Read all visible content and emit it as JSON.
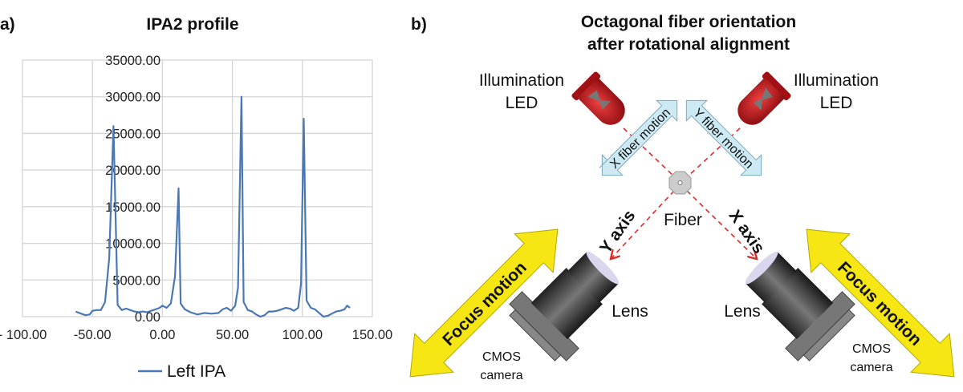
{
  "panel_a": {
    "label": "a)",
    "chart_data": {
      "type": "line",
      "title": "IPA2 profile",
      "xlabel": "",
      "ylabel": "",
      "xlim": [
        -100,
        150
      ],
      "ylim": [
        0,
        35000
      ],
      "x_ticks": [
        "- 100.00",
        "-50.00",
        "0.00",
        "50.00",
        "100.00",
        "150.00"
      ],
      "y_ticks": [
        "0.00",
        "5000.00",
        "10000.00",
        "15000.00",
        "20000.00",
        "25000.00",
        "30000.00",
        "35000.00"
      ],
      "grid": true,
      "legend_position": "bottom",
      "series": [
        {
          "name": "Left IPA",
          "color": "#4a78b5",
          "x": [
            -62,
            -58,
            -55,
            -52,
            -50,
            -47,
            -44,
            -41,
            -38,
            -35,
            -32,
            -29,
            -26,
            -23,
            -20,
            -17,
            -14,
            -11,
            -8,
            -5,
            -2,
            0,
            3,
            6,
            9,
            11.5,
            13,
            16,
            20,
            25,
            30,
            35,
            40,
            43,
            46,
            49,
            52,
            54,
            56.5,
            58,
            61,
            64,
            67,
            70,
            73,
            76,
            79,
            82,
            85,
            88,
            91,
            94,
            97,
            99,
            101,
            103,
            106,
            109,
            112,
            115,
            118,
            121,
            124,
            127,
            130,
            132,
            134
          ],
          "y": [
            700,
            400,
            200,
            300,
            800,
            900,
            900,
            2000,
            8000,
            26000,
            1600,
            900,
            1100,
            900,
            700,
            600,
            700,
            600,
            800,
            1000,
            1200,
            1500,
            1200,
            1800,
            5500,
            17500,
            1800,
            1000,
            600,
            300,
            500,
            400,
            500,
            1000,
            1200,
            800,
            1500,
            4000,
            30000,
            2000,
            900,
            700,
            300,
            0,
            200,
            700,
            700,
            800,
            1000,
            1200,
            1100,
            800,
            1200,
            4500,
            27000,
            2200,
            1200,
            1000,
            500,
            0,
            100,
            400,
            700,
            800,
            1000,
            1500,
            1200
          ]
        }
      ]
    }
  },
  "panel_b": {
    "label": "b)",
    "title_line1": "Octagonal fiber orientation",
    "title_line2": "after rotational alignment",
    "led_left_line1": "Illumination",
    "led_left_line2": "LED",
    "led_right_line1": "Illumination",
    "led_right_line2": "LED",
    "x_fiber_motion": "X fiber motion",
    "y_fiber_motion": "Y fiber motion",
    "fiber": "Fiber",
    "y_axis": "Y axis",
    "x_axis": "X axis",
    "focus_left": "Focus motion",
    "focus_right": "Focus motion",
    "lens_left": "Lens",
    "lens_right": "Lens",
    "camera_left_line1": "CMOS",
    "camera_left_line2": "camera",
    "camera_right_line1": "CMOS",
    "camera_right_line2": "camera",
    "colors": {
      "motion_arrow": "#cdeaf4",
      "focus_arrow": "#f5e614",
      "led": "#c8161d",
      "beam": "#e02a2a"
    }
  }
}
